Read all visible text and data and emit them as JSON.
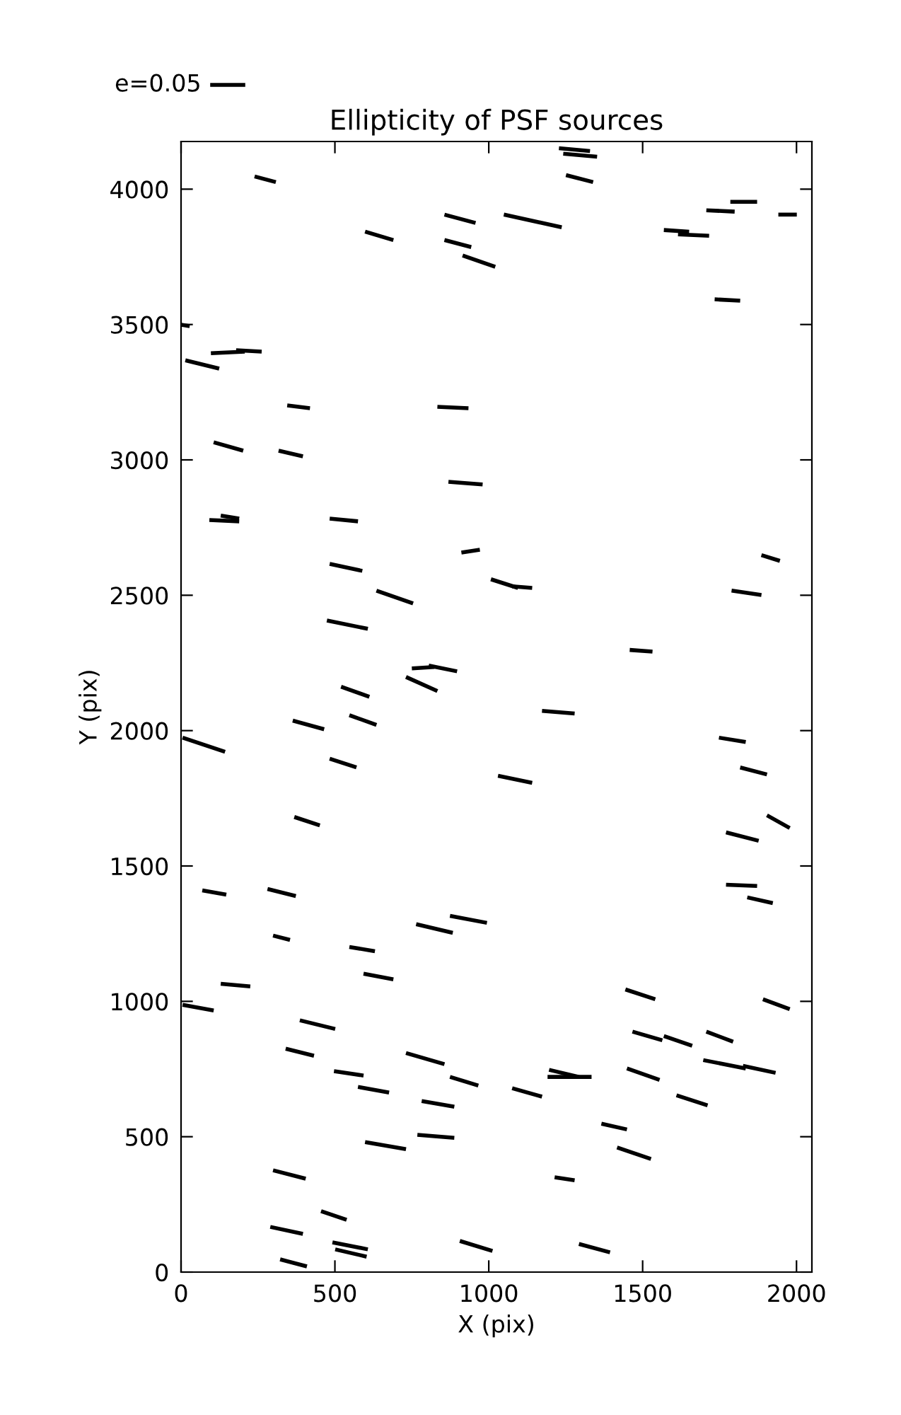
{
  "chart_data": {
    "type": "line",
    "title": "Ellipticity of PSF sources",
    "xlabel": "X (pix)",
    "ylabel": "Y (pix)",
    "annotations": [
      "e=0.05"
    ],
    "xlim": [
      0,
      2050
    ],
    "ylim": [
      0,
      4176
    ],
    "xticks": [
      0,
      500,
      1000,
      1500,
      2000
    ],
    "yticks": [
      0,
      500,
      1000,
      1500,
      2000,
      2500,
      3000,
      3500,
      4000
    ],
    "grid": false,
    "marker": "none",
    "line_style": "solid",
    "series": [
      {
        "color": "#000000",
        "x": [
          1228,
          1329
        ],
        "values": [
          4151,
          4141
        ]
      },
      {
        "color": "#000000",
        "x": [
          1242,
          1352
        ],
        "values": [
          4131,
          4120
        ]
      },
      {
        "color": "#000000",
        "x": [
          1251,
          1339
        ],
        "values": [
          4052,
          4026
        ]
      },
      {
        "color": "#000000",
        "x": [
          239,
          308
        ],
        "values": [
          4047,
          4026
        ]
      },
      {
        "color": "#000000",
        "x": [
          856,
          957
        ],
        "values": [
          3906,
          3875
        ]
      },
      {
        "color": "#000000",
        "x": [
          1049,
          1237
        ],
        "values": [
          3906,
          3859
        ]
      },
      {
        "color": "#000000",
        "x": [
          598,
          690
        ],
        "values": [
          3843,
          3812
        ]
      },
      {
        "color": "#000000",
        "x": [
          856,
          943
        ],
        "values": [
          3812,
          3786
        ]
      },
      {
        "color": "#000000",
        "x": [
          915,
          1021
        ],
        "values": [
          3755,
          3713
        ]
      },
      {
        "color": "#000000",
        "x": [
          1785,
          1872
        ],
        "values": [
          3953,
          3953
        ]
      },
      {
        "color": "#000000",
        "x": [
          1707,
          1799
        ],
        "values": [
          3922,
          3917
        ]
      },
      {
        "color": "#000000",
        "x": [
          1941,
          2001
        ],
        "values": [
          3906,
          3906
        ]
      },
      {
        "color": "#000000",
        "x": [
          1569,
          1651
        ],
        "values": [
          3849,
          3843
        ]
      },
      {
        "color": "#000000",
        "x": [
          1615,
          1716
        ],
        "values": [
          3833,
          3828
        ]
      },
      {
        "color": "#000000",
        "x": [
          1734,
          1817
        ],
        "values": [
          3593,
          3588
        ]
      },
      {
        "color": "#000000",
        "x": [
          0,
          28
        ],
        "values": [
          3499,
          3494
        ]
      },
      {
        "color": "#000000",
        "x": [
          97,
          207
        ],
        "values": [
          3394,
          3400
        ]
      },
      {
        "color": "#000000",
        "x": [
          179,
          262
        ],
        "values": [
          3405,
          3400
        ]
      },
      {
        "color": "#000000",
        "x": [
          14,
          124
        ],
        "values": [
          3368,
          3337
        ]
      },
      {
        "color": "#000000",
        "x": [
          345,
          419
        ],
        "values": [
          3201,
          3191
        ]
      },
      {
        "color": "#000000",
        "x": [
          833,
          934
        ],
        "values": [
          3196,
          3191
        ]
      },
      {
        "color": "#000000",
        "x": [
          106,
          202
        ],
        "values": [
          3065,
          3034
        ]
      },
      {
        "color": "#000000",
        "x": [
          317,
          396
        ],
        "values": [
          3034,
          3013
        ]
      },
      {
        "color": "#000000",
        "x": [
          869,
          980
        ],
        "values": [
          2919,
          2909
        ]
      },
      {
        "color": "#000000",
        "x": [
          92,
          189
        ],
        "values": [
          2778,
          2773
        ]
      },
      {
        "color": "#000000",
        "x": [
          129,
          189
        ],
        "values": [
          2794,
          2783
        ]
      },
      {
        "color": "#000000",
        "x": [
          483,
          575
        ],
        "values": [
          2783,
          2773
        ]
      },
      {
        "color": "#000000",
        "x": [
          911,
          971
        ],
        "values": [
          2658,
          2668
        ]
      },
      {
        "color": "#000000",
        "x": [
          1007,
          1095
        ],
        "values": [
          2559,
          2527
        ]
      },
      {
        "color": "#000000",
        "x": [
          1076,
          1141
        ],
        "values": [
          2533,
          2527
        ]
      },
      {
        "color": "#000000",
        "x": [
          1886,
          1946
        ],
        "values": [
          2648,
          2627
        ]
      },
      {
        "color": "#000000",
        "x": [
          1789,
          1886
        ],
        "values": [
          2517,
          2501
        ]
      },
      {
        "color": "#000000",
        "x": [
          1458,
          1532
        ],
        "values": [
          2298,
          2292
        ]
      },
      {
        "color": "#000000",
        "x": [
          1173,
          1279
        ],
        "values": [
          2073,
          2063
        ]
      },
      {
        "color": "#000000",
        "x": [
          1748,
          1835
        ],
        "values": [
          1974,
          1958
        ]
      },
      {
        "color": "#000000",
        "x": [
          1030,
          1141
        ],
        "values": [
          1833,
          1807
        ]
      },
      {
        "color": "#000000",
        "x": [
          1817,
          1904
        ],
        "values": [
          1864,
          1838
        ]
      },
      {
        "color": "#000000",
        "x": [
          1904,
          1978
        ],
        "values": [
          1687,
          1640
        ]
      },
      {
        "color": "#000000",
        "x": [
          1771,
          1877
        ],
        "values": [
          1624,
          1593
        ]
      },
      {
        "color": "#000000",
        "x": [
          1771,
          1872
        ],
        "values": [
          1431,
          1426
        ]
      },
      {
        "color": "#000000",
        "x": [
          1840,
          1923
        ],
        "values": [
          1384,
          1363
        ]
      },
      {
        "color": "#000000",
        "x": [
          483,
          589
        ],
        "values": [
          2616,
          2590
        ]
      },
      {
        "color": "#000000",
        "x": [
          635,
          754
        ],
        "values": [
          2517,
          2470
        ]
      },
      {
        "color": "#000000",
        "x": [
          474,
          607
        ],
        "values": [
          2407,
          2376
        ]
      },
      {
        "color": "#000000",
        "x": [
          750,
          823
        ],
        "values": [
          2230,
          2235
        ]
      },
      {
        "color": "#000000",
        "x": [
          805,
          897
        ],
        "values": [
          2240,
          2219
        ]
      },
      {
        "color": "#000000",
        "x": [
          731,
          833
        ],
        "values": [
          2198,
          2146
        ]
      },
      {
        "color": "#000000",
        "x": [
          520,
          612
        ],
        "values": [
          2162,
          2125
        ]
      },
      {
        "color": "#000000",
        "x": [
          547,
          635
        ],
        "values": [
          2057,
          2021
        ]
      },
      {
        "color": "#000000",
        "x": [
          363,
          465
        ],
        "values": [
          2037,
          2005
        ]
      },
      {
        "color": "#000000",
        "x": [
          5,
          143
        ],
        "values": [
          1974,
          1922
        ]
      },
      {
        "color": "#000000",
        "x": [
          483,
          570
        ],
        "values": [
          1896,
          1864
        ]
      },
      {
        "color": "#000000",
        "x": [
          368,
          451
        ],
        "values": [
          1681,
          1650
        ]
      },
      {
        "color": "#000000",
        "x": [
          69,
          147
        ],
        "values": [
          1410,
          1394
        ]
      },
      {
        "color": "#000000",
        "x": [
          281,
          373
        ],
        "values": [
          1415,
          1389
        ]
      },
      {
        "color": "#000000",
        "x": [
          874,
          994
        ],
        "values": [
          1316,
          1290
        ]
      },
      {
        "color": "#000000",
        "x": [
          764,
          883
        ],
        "values": [
          1285,
          1253
        ]
      },
      {
        "color": "#000000",
        "x": [
          299,
          354
        ],
        "values": [
          1243,
          1227
        ]
      },
      {
        "color": "#000000",
        "x": [
          547,
          630
        ],
        "values": [
          1201,
          1185
        ]
      },
      {
        "color": "#000000",
        "x": [
          593,
          690
        ],
        "values": [
          1102,
          1081
        ]
      },
      {
        "color": "#000000",
        "x": [
          129,
          225
        ],
        "values": [
          1065,
          1055
        ]
      },
      {
        "color": "#000000",
        "x": [
          5,
          106
        ],
        "values": [
          987,
          966
        ]
      },
      {
        "color": "#000000",
        "x": [
          386,
          501
        ],
        "values": [
          930,
          898
        ]
      },
      {
        "color": "#000000",
        "x": [
          340,
          432
        ],
        "values": [
          825,
          799
        ]
      },
      {
        "color": "#000000",
        "x": [
          731,
          856
        ],
        "values": [
          809,
          768
        ]
      },
      {
        "color": "#000000",
        "x": [
          874,
          966
        ],
        "values": [
          721,
          689
        ]
      },
      {
        "color": "#000000",
        "x": [
          497,
          593
        ],
        "values": [
          742,
          726
        ]
      },
      {
        "color": "#000000",
        "x": [
          575,
          676
        ],
        "values": [
          684,
          663
        ]
      },
      {
        "color": "#000000",
        "x": [
          782,
          888
        ],
        "values": [
          632,
          611
        ]
      },
      {
        "color": "#000000",
        "x": [
          598,
          731
        ],
        "values": [
          480,
          454
        ]
      },
      {
        "color": "#000000",
        "x": [
          768,
          888
        ],
        "values": [
          507,
          496
        ]
      },
      {
        "color": "#000000",
        "x": [
          299,
          405
        ],
        "values": [
          376,
          345
        ]
      },
      {
        "color": "#000000",
        "x": [
          455,
          538
        ],
        "values": [
          225,
          193
        ]
      },
      {
        "color": "#000000",
        "x": [
          290,
          396
        ],
        "values": [
          167,
          141
        ]
      },
      {
        "color": "#000000",
        "x": [
          492,
          607
        ],
        "values": [
          110,
          84
        ]
      },
      {
        "color": "#000000",
        "x": [
          501,
          603
        ],
        "values": [
          84,
          57
        ]
      },
      {
        "color": "#000000",
        "x": [
          322,
          409
        ],
        "values": [
          47,
          21
        ]
      },
      {
        "color": "#000000",
        "x": [
          906,
          1012
        ],
        "values": [
          115,
          78
        ]
      },
      {
        "color": "#000000",
        "x": [
          1444,
          1541
        ],
        "values": [
          1044,
          1008
        ]
      },
      {
        "color": "#000000",
        "x": [
          1891,
          1978
        ],
        "values": [
          1008,
          971
        ]
      },
      {
        "color": "#000000",
        "x": [
          1467,
          1564
        ],
        "values": [
          888,
          856
        ]
      },
      {
        "color": "#000000",
        "x": [
          1569,
          1661
        ],
        "values": [
          872,
          836
        ]
      },
      {
        "color": "#000000",
        "x": [
          1707,
          1794
        ],
        "values": [
          888,
          851
        ]
      },
      {
        "color": "#000000",
        "x": [
          1697,
          1835
        ],
        "values": [
          783,
          752
        ]
      },
      {
        "color": "#000000",
        "x": [
          1826,
          1932
        ],
        "values": [
          762,
          736
        ]
      },
      {
        "color": "#000000",
        "x": [
          1196,
          1293
        ],
        "values": [
          747,
          721
        ]
      },
      {
        "color": "#000000",
        "x": [
          1191,
          1334
        ],
        "values": [
          721,
          721
        ]
      },
      {
        "color": "#000000",
        "x": [
          1449,
          1555
        ],
        "values": [
          752,
          710
        ]
      },
      {
        "color": "#000000",
        "x": [
          1076,
          1173
        ],
        "values": [
          679,
          648
        ]
      },
      {
        "color": "#000000",
        "x": [
          1610,
          1711
        ],
        "values": [
          653,
          616
        ]
      },
      {
        "color": "#000000",
        "x": [
          1366,
          1449
        ],
        "values": [
          548,
          527
        ]
      },
      {
        "color": "#000000",
        "x": [
          1417,
          1527
        ],
        "values": [
          460,
          418
        ]
      },
      {
        "color": "#000000",
        "x": [
          1214,
          1279
        ],
        "values": [
          350,
          339
        ]
      },
      {
        "color": "#000000",
        "x": [
          1293,
          1394
        ],
        "values": [
          104,
          73
        ]
      }
    ]
  }
}
